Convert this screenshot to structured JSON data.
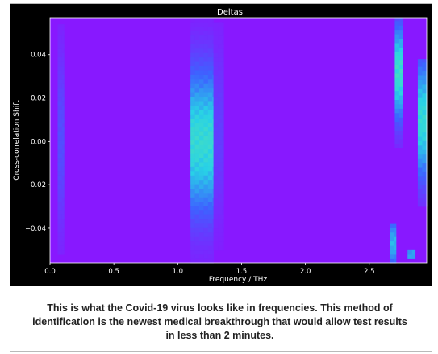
{
  "chart_data": {
    "type": "heatmap",
    "title": "Deltas",
    "xlabel": "Frequency / THz",
    "ylabel": "Cross-correlation Shift",
    "xlim": [
      0.0,
      2.95
    ],
    "ylim": [
      -0.056,
      0.057
    ],
    "x_ticks": [
      0.0,
      0.5,
      1.0,
      1.5,
      2.0,
      2.5
    ],
    "x_tick_labels": [
      "0.0",
      "0.5",
      "1.0",
      "1.5",
      "2.0",
      "2.5"
    ],
    "y_ticks": [
      -0.04,
      -0.02,
      0.0,
      0.02,
      0.04
    ],
    "y_tick_labels": [
      "−0.04",
      "−0.02",
      "0.00",
      "0.02",
      "0.04"
    ],
    "colormap": "cool-purple",
    "background_value": 0,
    "features": [
      {
        "x_range": [
          0.06,
          0.11
        ],
        "y_range": [
          -0.052,
          0.054
        ],
        "peak": 0.22,
        "center_y": 0.0,
        "spread": 0.03
      },
      {
        "x_range": [
          1.1,
          1.28
        ],
        "y_range": [
          -0.056,
          0.057
        ],
        "peak": 0.72,
        "center_y": 0.0,
        "spread": 0.024
      },
      {
        "x_range": [
          1.28,
          1.36
        ],
        "y_range": [
          -0.05,
          0.055
        ],
        "peak": 0.16,
        "center_y": 0.005,
        "spread": 0.03
      },
      {
        "x_range": [
          2.66,
          2.71
        ],
        "y_range": [
          -0.056,
          -0.038
        ],
        "peak": 0.55,
        "center_y": -0.047,
        "spread": 0.008
      },
      {
        "x_range": [
          2.7,
          2.76
        ],
        "y_range": [
          -0.003,
          0.057
        ],
        "peak": 0.75,
        "center_y": 0.032,
        "spread": 0.016
      },
      {
        "x_range": [
          2.8,
          2.86
        ],
        "y_range": [
          -0.054,
          -0.05
        ],
        "peak": 0.5,
        "center_y": -0.052,
        "spread": 0.004
      },
      {
        "x_range": [
          2.88,
          2.95
        ],
        "y_range": [
          -0.03,
          0.038
        ],
        "peak": 0.7,
        "center_y": 0.01,
        "spread": 0.02
      }
    ]
  },
  "caption": "This is what the Covid-19 virus looks like in frequencies. This method of identification is the newest medical breakthrough that would allow test results in less than 2 minutes."
}
